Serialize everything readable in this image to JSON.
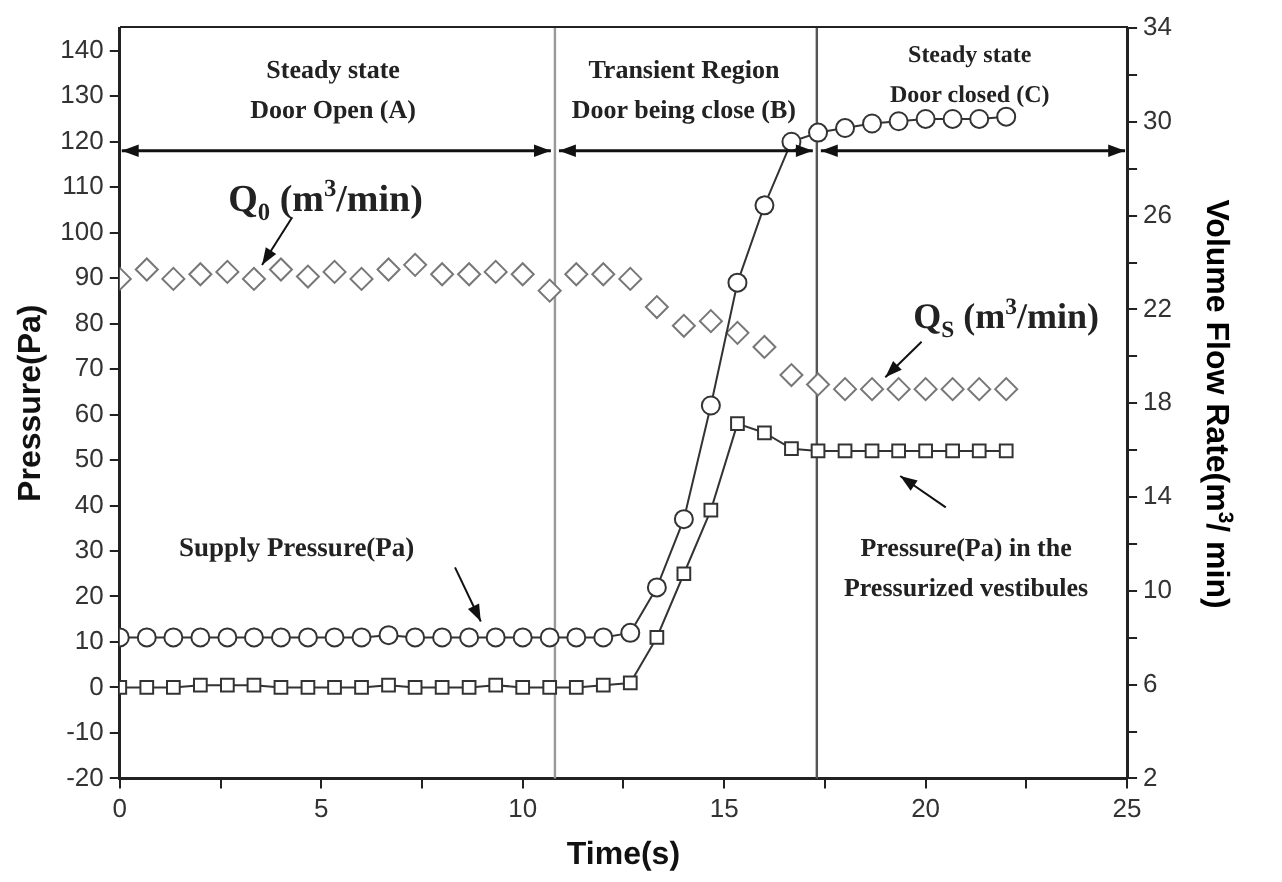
{
  "chart_data": {
    "type": "line",
    "xlabel": "Time(s)",
    "ylabel": "Pressure(Pa)",
    "y2label": "Volume Flow Rate(m$^{3}$/ min)",
    "x": [
      0,
      0.67,
      1.33,
      2,
      2.67,
      3.33,
      4,
      4.67,
      5.33,
      6,
      6.67,
      7.33,
      8,
      8.67,
      9.33,
      10,
      10.67,
      11.33,
      12,
      12.67,
      13.33,
      14,
      14.67,
      15.33,
      16,
      16.67,
      17.33,
      18,
      18.67,
      19.33,
      20,
      20.67,
      21.33,
      22
    ],
    "series": [
      {
        "type": "line",
        "marker": "circle",
        "color": "#333333",
        "values": [
          11,
          11,
          11,
          11,
          11,
          11,
          11,
          11,
          11,
          11,
          11.5,
          11,
          11,
          11,
          11,
          11,
          11,
          11,
          11,
          12,
          22,
          37,
          62,
          89,
          106,
          120,
          122,
          123,
          124,
          124.5,
          125,
          125,
          125,
          125.5
        ]
      },
      {
        "type": "line",
        "marker": "square",
        "color": "#333333",
        "values": [
          0,
          0,
          0,
          0.5,
          0.5,
          0.5,
          0,
          0,
          0,
          0,
          0.5,
          0,
          0,
          0,
          0.5,
          0,
          0,
          0,
          0.5,
          1,
          11,
          25,
          39,
          58,
          56,
          52.5,
          52,
          52,
          52,
          52,
          52,
          52,
          52,
          52
        ]
      },
      {
        "type": "scatter",
        "marker": "diamond",
        "axis": "y2",
        "color": "#777777",
        "values": [
          23.3,
          23.7,
          23.3,
          23.5,
          23.6,
          23.3,
          23.7,
          23.4,
          23.6,
          23.3,
          23.7,
          23.9,
          23.5,
          23.5,
          23.6,
          23.5,
          22.8,
          23.5,
          23.5,
          23.3,
          22.1,
          21.3,
          21.5,
          21,
          20.4,
          19.2,
          18.8,
          18.6,
          18.6,
          18.6,
          18.6,
          18.6,
          18.6,
          18.6
        ]
      }
    ],
    "xlim": [
      0,
      25
    ],
    "xticks": [
      0,
      {
        "value": 2.5,
        "label": null
      },
      5,
      {
        "value": 7.5,
        "label": null
      },
      10,
      {
        "value": 12.5,
        "label": null
      },
      15,
      {
        "value": 17.5,
        "label": null
      },
      20,
      {
        "value": 22.5,
        "label": null
      },
      25
    ],
    "ylim": [
      -20,
      145
    ],
    "yticks": [
      -20,
      -10,
      0,
      10,
      20,
      30,
      40,
      50,
      60,
      70,
      80,
      90,
      100,
      110,
      120,
      130,
      140
    ],
    "y2lim": [
      2,
      34
    ],
    "y2ticks": [
      2,
      {
        "value": 4,
        "label": null
      },
      6,
      {
        "value": 8,
        "label": null
      },
      10,
      {
        "value": 12,
        "label": null
      },
      14,
      {
        "value": 16,
        "label": null
      },
      18,
      {
        "value": 20,
        "label": null
      },
      22,
      {
        "value": 24,
        "label": null
      },
      26,
      {
        "value": 28,
        "label": null
      },
      30,
      {
        "value": 32,
        "label": null
      },
      34
    ],
    "ref_lines": [
      {
        "axis": "x",
        "value": 10.8,
        "color": "#999999"
      },
      {
        "axis": "x",
        "value": 17.3,
        "color": "#555555"
      }
    ],
    "annotations": [
      "Steady state\nDoor Open (A)",
      "Transient Region\nDoor being close (B)",
      "Steady state\nDoor closed (C)",
      "Q$_{0}$ (m$^{3}$/min)",
      "Q$_{S}$ (m$^{3}$/min)",
      "Supply Pressure(Pa)",
      "Pressure(Pa) in the\nPressurized vestibules"
    ],
    "grid": false,
    "legend": false
  }
}
